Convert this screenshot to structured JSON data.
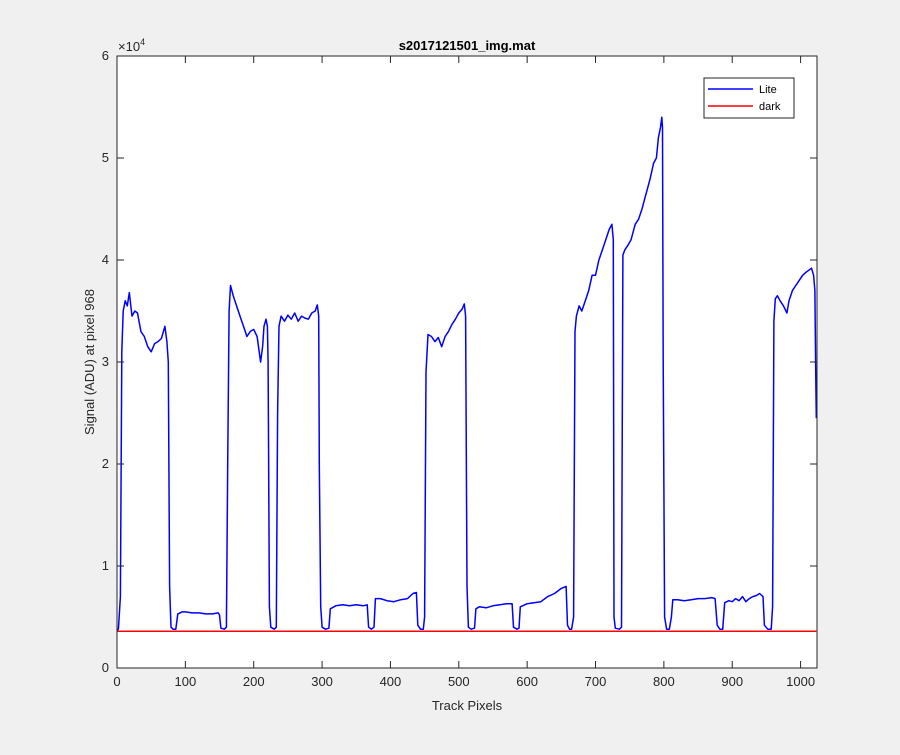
{
  "chart_data": {
    "type": "line",
    "title": "s2017121501_img.mat",
    "xlabel": "Track Pixels",
    "ylabel": "Signal (ADU) at pixel 968",
    "xlim": [
      0,
      1024
    ],
    "ylim": [
      0,
      60000
    ],
    "x_ticks": [
      0,
      100,
      200,
      300,
      400,
      500,
      600,
      700,
      800,
      900,
      1000
    ],
    "y_ticks": [
      0,
      10000,
      20000,
      30000,
      40000,
      50000,
      60000
    ],
    "y_tick_labels": [
      "0",
      "1",
      "2",
      "3",
      "4",
      "5",
      "6"
    ],
    "y_exponent_label": "×10",
    "y_exponent_power": "4",
    "legend_position": "top-right",
    "grid": false,
    "series": [
      {
        "name": "Lite",
        "color": "#0000ff",
        "points": [
          [
            0,
            3700
          ],
          [
            2,
            3800
          ],
          [
            5,
            7000
          ],
          [
            7,
            31000
          ],
          [
            9,
            35000
          ],
          [
            12,
            36000
          ],
          [
            15,
            35500
          ],
          [
            18,
            36800
          ],
          [
            22,
            34500
          ],
          [
            26,
            35000
          ],
          [
            30,
            34800
          ],
          [
            35,
            33000
          ],
          [
            40,
            32500
          ],
          [
            45,
            31500
          ],
          [
            50,
            31000
          ],
          [
            55,
            31800
          ],
          [
            60,
            32000
          ],
          [
            65,
            32300
          ],
          [
            70,
            33500
          ],
          [
            73,
            32000
          ],
          [
            75,
            30000
          ],
          [
            77,
            8000
          ],
          [
            79,
            4000
          ],
          [
            82,
            3800
          ],
          [
            86,
            3800
          ],
          [
            89,
            5300
          ],
          [
            95,
            5500
          ],
          [
            100,
            5500
          ],
          [
            110,
            5400
          ],
          [
            120,
            5400
          ],
          [
            130,
            5300
          ],
          [
            140,
            5300
          ],
          [
            148,
            5400
          ],
          [
            150,
            5200
          ],
          [
            152,
            3900
          ],
          [
            157,
            3800
          ],
          [
            160,
            4000
          ],
          [
            162,
            20000
          ],
          [
            164,
            35000
          ],
          [
            166,
            37500
          ],
          [
            170,
            36500
          ],
          [
            175,
            35500
          ],
          [
            180,
            34500
          ],
          [
            185,
            33500
          ],
          [
            190,
            32500
          ],
          [
            195,
            33000
          ],
          [
            200,
            33200
          ],
          [
            205,
            32500
          ],
          [
            210,
            30000
          ],
          [
            213,
            31500
          ],
          [
            215,
            33500
          ],
          [
            218,
            34200
          ],
          [
            220,
            33500
          ],
          [
            221,
            30000
          ],
          [
            223,
            6000
          ],
          [
            225,
            4000
          ],
          [
            230,
            3800
          ],
          [
            233,
            4000
          ],
          [
            235,
            25000
          ],
          [
            237,
            33500
          ],
          [
            240,
            34500
          ],
          [
            245,
            34000
          ],
          [
            250,
            34600
          ],
          [
            255,
            34200
          ],
          [
            260,
            34800
          ],
          [
            265,
            34000
          ],
          [
            270,
            34500
          ],
          [
            275,
            34300
          ],
          [
            280,
            34200
          ],
          [
            285,
            34800
          ],
          [
            290,
            35000
          ],
          [
            293,
            35600
          ],
          [
            295,
            34500
          ],
          [
            296,
            20000
          ],
          [
            298,
            6000
          ],
          [
            300,
            4000
          ],
          [
            305,
            3800
          ],
          [
            310,
            3900
          ],
          [
            312,
            5800
          ],
          [
            320,
            6100
          ],
          [
            330,
            6200
          ],
          [
            340,
            6100
          ],
          [
            350,
            6200
          ],
          [
            360,
            6100
          ],
          [
            366,
            6200
          ],
          [
            368,
            4000
          ],
          [
            372,
            3800
          ],
          [
            376,
            4000
          ],
          [
            378,
            6800
          ],
          [
            385,
            6800
          ],
          [
            395,
            6600
          ],
          [
            405,
            6500
          ],
          [
            415,
            6700
          ],
          [
            425,
            6800
          ],
          [
            433,
            7300
          ],
          [
            438,
            7400
          ],
          [
            440,
            4200
          ],
          [
            444,
            3800
          ],
          [
            448,
            3800
          ],
          [
            450,
            5000
          ],
          [
            452,
            29000
          ],
          [
            455,
            32700
          ],
          [
            460,
            32500
          ],
          [
            465,
            32000
          ],
          [
            470,
            32400
          ],
          [
            475,
            31500
          ],
          [
            480,
            32500
          ],
          [
            485,
            33000
          ],
          [
            490,
            33700
          ],
          [
            495,
            34200
          ],
          [
            500,
            34800
          ],
          [
            505,
            35200
          ],
          [
            508,
            35700
          ],
          [
            510,
            34500
          ],
          [
            512,
            8000
          ],
          [
            514,
            4000
          ],
          [
            518,
            3800
          ],
          [
            523,
            3900
          ],
          [
            525,
            5800
          ],
          [
            530,
            6000
          ],
          [
            540,
            5900
          ],
          [
            550,
            6100
          ],
          [
            560,
            6200
          ],
          [
            570,
            6300
          ],
          [
            578,
            6300
          ],
          [
            580,
            4000
          ],
          [
            585,
            3800
          ],
          [
            588,
            3900
          ],
          [
            590,
            6000
          ],
          [
            600,
            6300
          ],
          [
            610,
            6400
          ],
          [
            620,
            6500
          ],
          [
            630,
            7000
          ],
          [
            640,
            7300
          ],
          [
            650,
            7800
          ],
          [
            657,
            8000
          ],
          [
            659,
            4200
          ],
          [
            662,
            3800
          ],
          [
            665,
            3800
          ],
          [
            668,
            5000
          ],
          [
            670,
            33000
          ],
          [
            672,
            34500
          ],
          [
            676,
            35500
          ],
          [
            680,
            35000
          ],
          [
            685,
            36000
          ],
          [
            690,
            37000
          ],
          [
            695,
            38500
          ],
          [
            700,
            38500
          ],
          [
            705,
            40000
          ],
          [
            710,
            41000
          ],
          [
            715,
            42000
          ],
          [
            720,
            43000
          ],
          [
            724,
            43500
          ],
          [
            726,
            42000
          ],
          [
            727,
            5000
          ],
          [
            729,
            3900
          ],
          [
            735,
            3800
          ],
          [
            738,
            4000
          ],
          [
            740,
            40500
          ],
          [
            743,
            41000
          ],
          [
            748,
            41500
          ],
          [
            752,
            42000
          ],
          [
            758,
            43500
          ],
          [
            763,
            44000
          ],
          [
            768,
            45000
          ],
          [
            772,
            46000
          ],
          [
            776,
            47000
          ],
          [
            780,
            48000
          ],
          [
            785,
            49500
          ],
          [
            789,
            50000
          ],
          [
            792,
            52000
          ],
          [
            795,
            53000
          ],
          [
            797,
            54000
          ],
          [
            798,
            53000
          ],
          [
            799,
            30000
          ],
          [
            801,
            5000
          ],
          [
            804,
            3800
          ],
          [
            808,
            3800
          ],
          [
            811,
            5000
          ],
          [
            813,
            6700
          ],
          [
            820,
            6700
          ],
          [
            830,
            6600
          ],
          [
            840,
            6700
          ],
          [
            850,
            6800
          ],
          [
            860,
            6800
          ],
          [
            870,
            6900
          ],
          [
            875,
            6800
          ],
          [
            878,
            4200
          ],
          [
            882,
            3800
          ],
          [
            886,
            3800
          ],
          [
            889,
            6400
          ],
          [
            895,
            6600
          ],
          [
            900,
            6500
          ],
          [
            905,
            6800
          ],
          [
            910,
            6600
          ],
          [
            915,
            7000
          ],
          [
            920,
            6500
          ],
          [
            925,
            6800
          ],
          [
            930,
            7000
          ],
          [
            935,
            7100
          ],
          [
            940,
            7300
          ],
          [
            945,
            7000
          ],
          [
            947,
            4200
          ],
          [
            952,
            3800
          ],
          [
            957,
            3800
          ],
          [
            959,
            6000
          ],
          [
            961,
            34000
          ],
          [
            963,
            36200
          ],
          [
            966,
            36500
          ],
          [
            970,
            36000
          ],
          [
            975,
            35500
          ],
          [
            980,
            34800
          ],
          [
            983,
            36000
          ],
          [
            988,
            37000
          ],
          [
            993,
            37500
          ],
          [
            998,
            38000
          ],
          [
            1003,
            38500
          ],
          [
            1008,
            38800
          ],
          [
            1012,
            39000
          ],
          [
            1016,
            39200
          ],
          [
            1019,
            38500
          ],
          [
            1021,
            37000
          ],
          [
            1022,
            30000
          ],
          [
            1023,
            24500
          ]
        ]
      },
      {
        "name": "dark",
        "color": "#ff0000",
        "points": [
          [
            0,
            3600
          ],
          [
            1023,
            3600
          ]
        ]
      }
    ]
  }
}
